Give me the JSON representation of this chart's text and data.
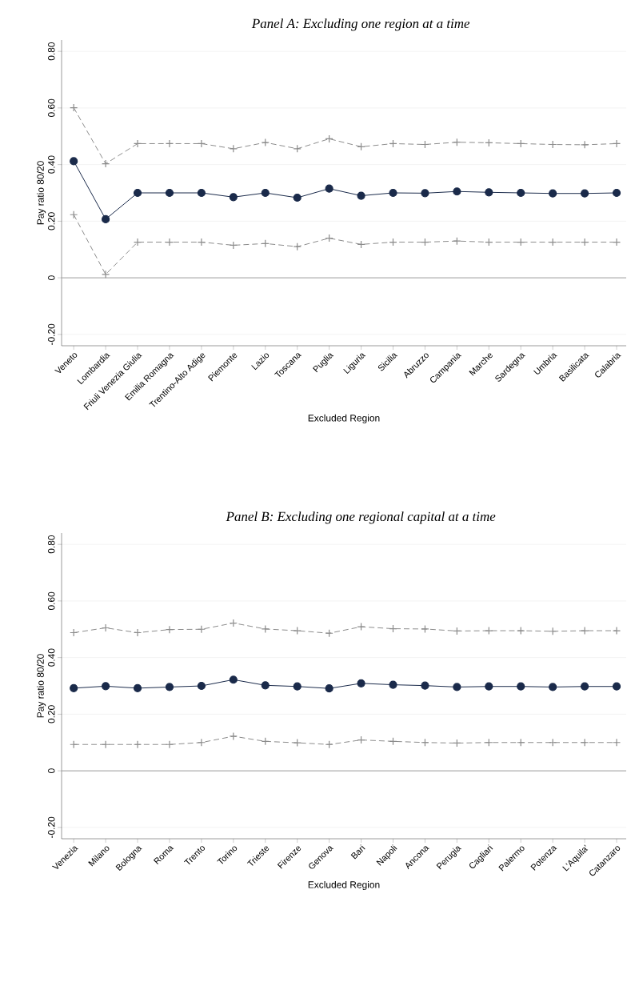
{
  "chart_data": [
    {
      "type": "line",
      "title": "Panel A: Excluding one region at a time",
      "xlabel": "Excluded Region",
      "ylabel": "Pay ratio 80/20",
      "categories": [
        "Veneto",
        "Lombardia",
        "Friuli Venezia Giulia",
        "Emilia Romagna",
        "Trentino-Alto Adige",
        "Piemonte",
        "Lazio",
        "Toscana",
        "Puglia",
        "Liguria",
        "Sicilia",
        "Abruzzo",
        "Campania",
        "Marche",
        "Sardegna",
        "Umbria",
        "Basilicata",
        "Calabria"
      ],
      "series": [
        {
          "color": "#8c8c8c",
          "marker": "cross",
          "line_style": "dashed",
          "values": [
            0.601,
            0.403,
            0.474,
            0.474,
            0.474,
            0.456,
            0.478,
            0.456,
            0.491,
            0.463,
            0.474,
            0.471,
            0.479,
            0.477,
            0.474,
            0.471,
            0.47,
            0.474
          ]
        },
        {
          "color": "#8c8c8c",
          "marker": "cross",
          "line_style": "dashed",
          "values": [
            0.223,
            0.012,
            0.126,
            0.126,
            0.126,
            0.115,
            0.121,
            0.11,
            0.14,
            0.118,
            0.126,
            0.126,
            0.13,
            0.126,
            0.126,
            0.126,
            0.126,
            0.126
          ]
        },
        {
          "color": "#1a2a4a",
          "marker": "circle",
          "line_style": "solid",
          "values": [
            0.412,
            0.207,
            0.3,
            0.3,
            0.3,
            0.285,
            0.3,
            0.283,
            0.315,
            0.29,
            0.3,
            0.299,
            0.305,
            0.302,
            0.3,
            0.298,
            0.298,
            0.3
          ]
        }
      ],
      "ylim": [
        -0.24,
        0.84
      ],
      "yticks": [
        {
          "value": -0.2,
          "label": "-0.20"
        },
        0,
        {
          "value": 0.2,
          "label": "0.20"
        },
        {
          "value": 0.4,
          "label": "0.40"
        },
        {
          "value": 0.6,
          "label": "0.60"
        },
        {
          "value": 0.8,
          "label": "0.80"
        }
      ],
      "grid": "y",
      "ref_lines": [
        {
          "axis": "y",
          "value": 0,
          "color": "#a0a0a0"
        }
      ]
    },
    {
      "type": "line",
      "title": "Panel B: Excluding one regional capital at a time",
      "xlabel": "Excluded Region",
      "ylabel": "Pay ratio 80/20",
      "categories": [
        "Venezia",
        "Milano",
        "Bologna",
        "Roma",
        "Trento",
        "Torino",
        "Trieste",
        "Firenze",
        "Genova",
        "Bari",
        "Napoli",
        "Ancona",
        "Perugia",
        "Cagliari",
        "Palermo",
        "Potenza",
        "L'Aquila'",
        "Catanzaro"
      ],
      "series": [
        {
          "color": "#8c8c8c",
          "marker": "cross",
          "line_style": "dashed",
          "values": [
            0.488,
            0.505,
            0.488,
            0.499,
            0.5,
            0.522,
            0.501,
            0.495,
            0.486,
            0.509,
            0.502,
            0.501,
            0.494,
            0.495,
            0.495,
            0.493,
            0.495,
            0.495
          ]
        },
        {
          "color": "#8c8c8c",
          "marker": "cross",
          "line_style": "dashed",
          "values": [
            0.093,
            0.093,
            0.093,
            0.093,
            0.1,
            0.122,
            0.104,
            0.099,
            0.093,
            0.109,
            0.104,
            0.1,
            0.098,
            0.1,
            0.1,
            0.1,
            0.1,
            0.1
          ]
        },
        {
          "color": "#1a2a4a",
          "marker": "circle",
          "line_style": "solid",
          "values": [
            0.292,
            0.299,
            0.292,
            0.296,
            0.3,
            0.322,
            0.302,
            0.298,
            0.291,
            0.309,
            0.304,
            0.301,
            0.296,
            0.298,
            0.298,
            0.296,
            0.298,
            0.298
          ]
        }
      ],
      "ylim": [
        -0.24,
        0.84
      ],
      "yticks": [
        {
          "value": -0.2,
          "label": "-0.20"
        },
        0,
        {
          "value": 0.2,
          "label": "0.20"
        },
        {
          "value": 0.4,
          "label": "0.40"
        },
        {
          "value": 0.6,
          "label": "0.60"
        },
        {
          "value": 0.8,
          "label": "0.80"
        }
      ],
      "grid": "y",
      "ref_lines": [
        {
          "axis": "y",
          "value": 0,
          "color": "#a0a0a0"
        }
      ]
    }
  ]
}
